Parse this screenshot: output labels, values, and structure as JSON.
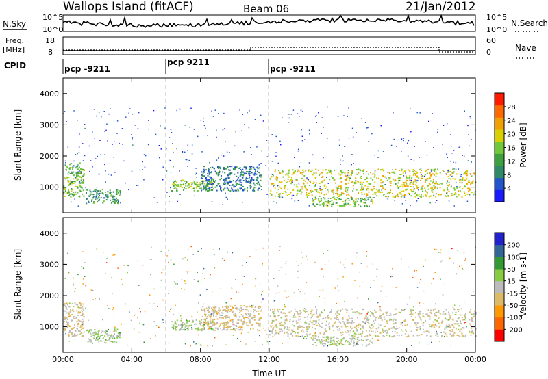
{
  "header": {
    "station": "Wallops Island (fitACF)",
    "beam": "Beam 06",
    "date": "21/Jan/2012"
  },
  "summary_panels": {
    "nsky": {
      "left_label": "N.Sky",
      "left_ticks": [
        "10^5",
        "10^0"
      ],
      "right_label": "N.Search",
      "right_ticks": [
        "10^5",
        "10^0"
      ]
    },
    "freq": {
      "left_label_line1": "Freq.",
      "left_label_line2": "[MHz]",
      "left_ticks": [
        "18",
        "8"
      ],
      "right_label": "Nave",
      "right_ticks": [
        "60",
        "0"
      ]
    },
    "cpid": {
      "label": "CPID",
      "segments": [
        {
          "label": "pcp -9211",
          "start_hour": 0
        },
        {
          "label": "pcp 9211",
          "start_hour": 6
        },
        {
          "label": "pcp -9211",
          "start_hour": 12
        }
      ]
    }
  },
  "chart_data": [
    {
      "type": "heatmap",
      "name": "power-panel",
      "ylabel": "Slant Range [km]",
      "xlabel": "",
      "x_ticks": [
        "00:00",
        "04:00",
        "08:00",
        "12:00",
        "16:00",
        "20:00",
        "00:00"
      ],
      "xlim_hours": [
        0,
        24
      ],
      "ylim_km": [
        180,
        4500
      ],
      "y_ticks": [
        "1000",
        "2000",
        "3000",
        "4000"
      ],
      "colorbar": {
        "label": "Power [dB]",
        "ticks": [
          "4",
          "8",
          "12",
          "16",
          "20",
          "24",
          "28"
        ],
        "range": [
          0,
          30
        ]
      },
      "echo_regions": [
        {
          "t0": 0.0,
          "t1": 1.2,
          "r0": 700,
          "r1": 1800,
          "level": 14
        },
        {
          "t0": 1.3,
          "t1": 3.3,
          "r0": 500,
          "r1": 950,
          "level": 10
        },
        {
          "t0": 6.3,
          "t1": 8.8,
          "r0": 900,
          "r1": 1250,
          "level": 15
        },
        {
          "t0": 8.0,
          "t1": 11.5,
          "r0": 900,
          "r1": 1700,
          "level": 8
        },
        {
          "t0": 12.0,
          "t1": 24.0,
          "r0": 700,
          "r1": 1600,
          "level": 18
        },
        {
          "t0": 14.5,
          "t1": 18.0,
          "r0": 400,
          "r1": 700,
          "level": 14
        }
      ]
    },
    {
      "type": "heatmap",
      "name": "velocity-panel",
      "ylabel": "Slant Range [km]",
      "xlabel": "Time UT",
      "x_ticks": [
        "00:00",
        "04:00",
        "08:00",
        "12:00",
        "16:00",
        "20:00",
        "00:00"
      ],
      "xlim_hours": [
        0,
        24
      ],
      "ylim_km": [
        180,
        4500
      ],
      "y_ticks": [
        "1000",
        "2000",
        "3000",
        "4000"
      ],
      "colorbar": {
        "label": "Velocity [m s-1]",
        "ticks": [
          "200",
          "100",
          "50",
          "15",
          "-15",
          "-50",
          "-100",
          "-200"
        ],
        "range": [
          -250,
          250
        ]
      },
      "echo_regions": [
        {
          "t0": 0.0,
          "t1": 1.2,
          "r0": 700,
          "r1": 1800,
          "level": -30
        },
        {
          "t0": 1.3,
          "t1": 3.3,
          "r0": 500,
          "r1": 950,
          "level": 30
        },
        {
          "t0": 6.3,
          "t1": 8.8,
          "r0": 900,
          "r1": 1250,
          "level": 40
        },
        {
          "t0": 8.0,
          "t1": 11.5,
          "r0": 900,
          "r1": 1700,
          "level": -40
        },
        {
          "t0": 12.0,
          "t1": 24.0,
          "r0": 700,
          "r1": 1600,
          "level": -20
        },
        {
          "t0": 14.5,
          "t1": 18.0,
          "r0": 400,
          "r1": 700,
          "level": 20
        }
      ]
    }
  ]
}
